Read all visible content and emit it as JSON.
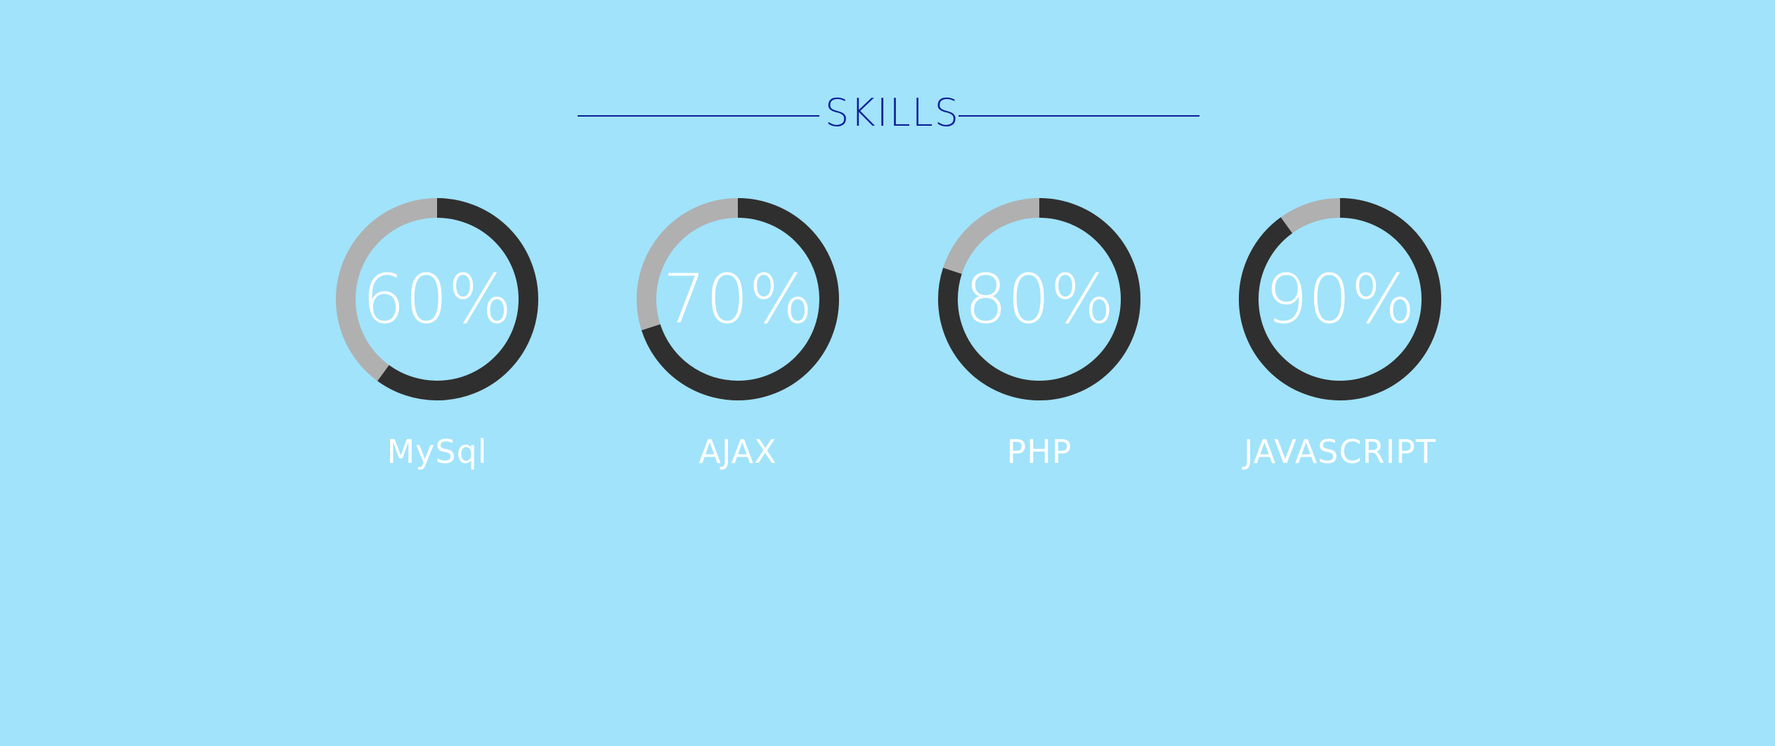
{
  "section": {
    "title": "SKILLS"
  },
  "skills": [
    {
      "name": "MySql",
      "percent_label": "60%",
      "percent": 60
    },
    {
      "name": "AJAX",
      "percent_label": "70%",
      "percent": 70
    },
    {
      "name": "PHP",
      "percent_label": "80%",
      "percent": 80
    },
    {
      "name": "JAVASCRIPT",
      "percent_label": "90%",
      "percent": 90
    }
  ],
  "colors": {
    "background": "#a0e3fb",
    "heading": "#0a1f9a",
    "progress_fill": "#2f2f2f",
    "progress_track": "#b0b0b0",
    "text": "#ffffff"
  }
}
